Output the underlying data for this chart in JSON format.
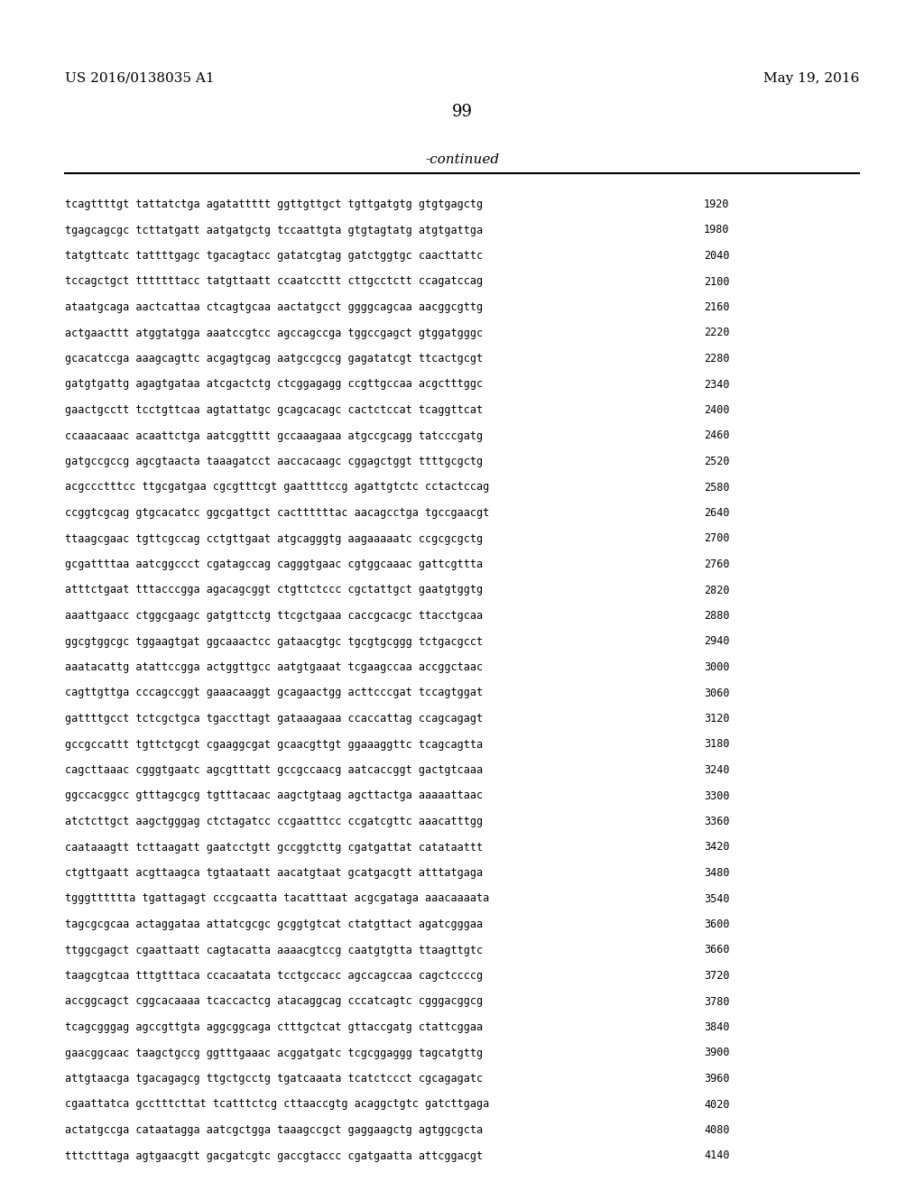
{
  "patent_number": "US 2016/0138035 A1",
  "date": "May 19, 2016",
  "page_number": "99",
  "continued_text": "-continued",
  "background_color": "#ffffff",
  "text_color": "#000000",
  "sequence_lines": [
    [
      "tcagttttgt tattatctga agatattttt ggttgttgct tgttgatgtg gtgtgagctg",
      "1920"
    ],
    [
      "tgagcagcgc tcttatgatt aatgatgctg tccaattgta gtgtagtatg atgtgattga",
      "1980"
    ],
    [
      "tatgttcatc tattttgagc tgacagtacc gatatcgtag gatctggtgc caacttattc",
      "2040"
    ],
    [
      "tccagctgct tttttttacc tatgttaatt ccaatccttt cttgcctctt ccagatccag",
      "2100"
    ],
    [
      "ataatgcaga aactcattaa ctcagtgcaa aactatgcct ggggcagcaa aacggcgttg",
      "2160"
    ],
    [
      "actgaacttt atggtatgga aaatccgtcc agccagccga tggccgagct gtggatgggc",
      "2220"
    ],
    [
      "gcacatccga aaagcagttc acgagtgcag aatgccgccg gagatatcgt ttcactgcgt",
      "2280"
    ],
    [
      "gatgtgattg agagtgataa atcgactctg ctcggagagg ccgttgccaa acgctttggc",
      "2340"
    ],
    [
      "gaactgcctt tcctgttcaa agtattatgc gcagcacagc cactctccat tcaggttcat",
      "2400"
    ],
    [
      "ccaaacaaac acaattctga aatcggtttt gccaaagaaa atgccgcagg tatcccgatg",
      "2460"
    ],
    [
      "gatgccgccg agcgtaacta taaagatcct aaccacaagc cggagctggt ttttgcgctg",
      "2520"
    ],
    [
      "acgccctttcc ttgcgatgaa cgcgtttcgt gaattttccg agattgtctc cctactccag",
      "2580"
    ],
    [
      "ccggtcgcag gtgcacatcc ggcgattgct cacttttttac aacagcctga tgccgaacgt",
      "2640"
    ],
    [
      "ttaagcgaac tgttcgccag cctgttgaat atgcagggtg aagaaaaatc ccgcgcgctg",
      "2700"
    ],
    [
      "gcgattttaa aatcggccct cgatagccag cagggtgaac cgtggcaaac gattcgttta",
      "2760"
    ],
    [
      "atttctgaat tttacccgga agacagcggt ctgttctccc cgctattgct gaatgtggtg",
      "2820"
    ],
    [
      "aaattgaacc ctggcgaagc gatgttcctg ttcgctgaaa caccgcacgc ttacctgcaa",
      "2880"
    ],
    [
      "ggcgtggcgc tggaagtgat ggcaaactcc gataacgtgc tgcgtgcggg tctgacgcct",
      "2940"
    ],
    [
      "aaatacattg atattccgga actggttgcc aatgtgaaat tcgaagccaa accggctaac",
      "3000"
    ],
    [
      "cagttgttga cccagccggt gaaacaaggt gcagaactgg acttcccgat tccagtggat",
      "3060"
    ],
    [
      "gattttgcct tctcgctgca tgaccttagt gataaagaaa ccaccattag ccagcagagt",
      "3120"
    ],
    [
      "gccgccattt tgttctgcgt cgaaggcgat gcaacgttgt ggaaaggttc tcagcagtta",
      "3180"
    ],
    [
      "cagcttaaac cgggtgaatc agcgtttatt gccgccaacg aatcaccggt gactgtcaaa",
      "3240"
    ],
    [
      "ggccacggcc gtttagcgcg tgtttacaac aagctgtaag agcttactga aaaaattaac",
      "3300"
    ],
    [
      "atctcttgct aagctgggag ctctagatcc ccgaatttcc ccgatcgttc aaacatttgg",
      "3360"
    ],
    [
      "caataaagtt tcttaagatt gaatcctgtt gccggtcttg cgatgattat catataattt",
      "3420"
    ],
    [
      "ctgttgaatt acgttaagca tgtaataatt aacatgtaat gcatgacgtt atttatgaga",
      "3480"
    ],
    [
      "tgggtttttta tgattagagt cccgcaatta tacatttaat acgcgataga aaacaaaata",
      "3540"
    ],
    [
      "tagcgcgcaa actaggataa attatcgcgc gcggtgtcat ctatgttact agatcgggaa",
      "3600"
    ],
    [
      "ttggcgagct cgaattaatt cagtacatta aaaacgtccg caatgtgtta ttaagttgtc",
      "3660"
    ],
    [
      "taagcgtcaa tttgtttaca ccacaatata tcctgccacc agccagccaa cagctccccg",
      "3720"
    ],
    [
      "accggcagct cggcacaaaa tcaccactcg atacaggcag cccatcagtc cgggacggcg",
      "3780"
    ],
    [
      "tcagcgggag agccgttgta aggcggcaga ctttgctcat gttaccgatg ctattcggaa",
      "3840"
    ],
    [
      "gaacggcaac taagctgccg ggtttgaaac acggatgatc tcgcggaggg tagcatgttg",
      "3900"
    ],
    [
      "attgtaacga tgacagagcg ttgctgcctg tgatcaaata tcatctccct cgcagagatc",
      "3960"
    ],
    [
      "cgaattatca gcctttcttat tcatttctcg cttaaccgtg acaggctgtc gatcttgaga",
      "4020"
    ],
    [
      "actatgccga cataatagga aatcgctgga taaagccgct gaggaagctg agtggcgcta",
      "4080"
    ],
    [
      "tttctttaga agtgaacgtt gacgatcgtc gaccgtaccc cgatgaatta attcggacgt",
      "4140"
    ]
  ]
}
